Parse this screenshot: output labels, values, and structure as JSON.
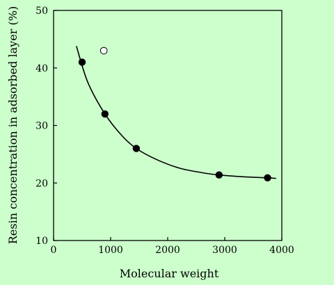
{
  "chart_data": {
    "type": "scatter",
    "title": "",
    "xlabel": "Molecular weight",
    "ylabel": "Resin concentration in adsorbed layer (%)",
    "xlim": [
      0,
      4000
    ],
    "ylim": [
      10,
      50
    ],
    "xticks": [
      0,
      1000,
      2000,
      3000,
      4000
    ],
    "yticks": [
      10,
      20,
      30,
      40,
      50
    ],
    "grid": false,
    "series": [
      {
        "marker": "filled-circle",
        "color": "#000000",
        "x": [
          500,
          900,
          1450,
          2900,
          3750
        ],
        "y": [
          41,
          32,
          26,
          21.4,
          20.9
        ]
      },
      {
        "marker": "open-circle",
        "color": "#ffffff",
        "x": [
          880
        ],
        "y": [
          43
        ]
      }
    ],
    "curve": {
      "x": [
        400,
        600,
        900,
        1200,
        1450,
        1800,
        2200,
        2600,
        2900,
        3300,
        3750,
        3900
      ],
      "y": [
        43.8,
        37.5,
        32,
        28.2,
        26,
        24.1,
        22.6,
        21.8,
        21.4,
        21.1,
        20.9,
        20.8
      ]
    }
  }
}
